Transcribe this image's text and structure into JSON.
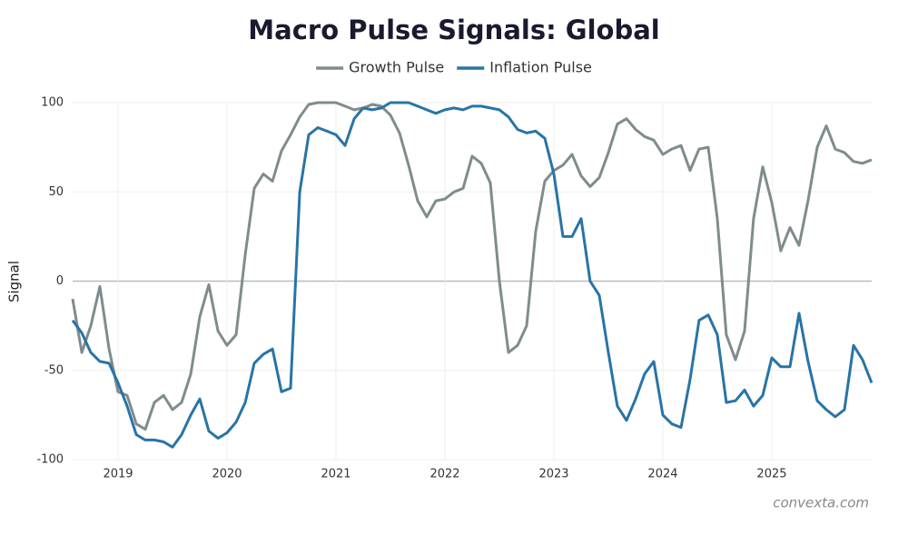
{
  "chart_data": {
    "type": "line",
    "title": "Macro Pulse Signals: Global",
    "ylabel": "Signal",
    "source": "convexta.com",
    "x": [
      2018.583,
      2018.667,
      2018.75,
      2018.833,
      2018.917,
      2019,
      2019.083,
      2019.167,
      2019.25,
      2019.333,
      2019.417,
      2019.5,
      2019.583,
      2019.667,
      2019.75,
      2019.833,
      2019.917,
      2020,
      2020.083,
      2020.167,
      2020.25,
      2020.333,
      2020.417,
      2020.5,
      2020.583,
      2020.667,
      2020.75,
      2020.833,
      2020.917,
      2021,
      2021.083,
      2021.167,
      2021.25,
      2021.333,
      2021.417,
      2021.5,
      2021.583,
      2021.667,
      2021.75,
      2021.833,
      2021.917,
      2022,
      2022.083,
      2022.167,
      2022.25,
      2022.333,
      2022.417,
      2022.5,
      2022.583,
      2022.667,
      2022.75,
      2022.833,
      2022.917,
      2023,
      2023.083,
      2023.167,
      2023.25,
      2023.333,
      2023.417,
      2023.5,
      2023.583,
      2023.667,
      2023.75,
      2023.833,
      2023.917,
      2024,
      2024.083,
      2024.167,
      2024.25,
      2024.333,
      2024.417,
      2024.5,
      2024.583,
      2024.667,
      2024.75,
      2024.833,
      2024.917,
      2025,
      2025.083,
      2025.167,
      2025.25,
      2025.333,
      2025.417,
      2025.5,
      2025.583,
      2025.667,
      2025.75,
      2025.833,
      2025.917
    ],
    "series": [
      {
        "name": "Growth Pulse",
        "color": "#7f8c8d",
        "values": [
          -10,
          -40,
          -25,
          -3,
          -38,
          -62,
          -64,
          -80,
          -83,
          -68,
          -64,
          -72,
          -68,
          -52,
          -20,
          -2,
          -28,
          -36,
          -30,
          15,
          52,
          60,
          56,
          73,
          82,
          92,
          99,
          100,
          100,
          100,
          98,
          96,
          97,
          99,
          98,
          93,
          83,
          65,
          45,
          36,
          45,
          46,
          50,
          52,
          70,
          66,
          55,
          0,
          -40,
          -36,
          -25,
          28,
          56,
          62,
          65,
          71,
          59,
          53,
          58,
          72,
          88,
          91,
          85,
          81,
          79,
          71,
          74,
          76,
          62,
          74,
          75,
          35,
          -30,
          -44,
          -28,
          35,
          64,
          44,
          17,
          30,
          20,
          45,
          75,
          87,
          74,
          72,
          67,
          66,
          68
        ]
      },
      {
        "name": "Inflation Pulse",
        "color": "#2874a6",
        "values": [
          -22,
          -29,
          -40,
          -45,
          -46,
          -57,
          -70,
          -86,
          -89,
          -89,
          -90,
          -93,
          -86,
          -75,
          -66,
          -84,
          -88,
          -85,
          -79,
          -68,
          -46,
          -41,
          -38,
          -62,
          -60,
          50,
          82,
          86,
          84,
          82,
          76,
          91,
          97,
          96,
          97,
          100,
          100,
          100,
          98,
          96,
          94,
          96,
          97,
          96,
          98,
          98,
          97,
          96,
          92,
          85,
          83,
          84,
          80,
          60,
          25,
          25,
          35,
          0,
          -8,
          -40,
          -70,
          -78,
          -66,
          -52,
          -45,
          -75,
          -80,
          -82,
          -55,
          -22,
          -19,
          -30,
          -68,
          -67,
          -61,
          -70,
          -64,
          -43,
          -48,
          -48,
          -18,
          -45,
          -67,
          -72,
          -76,
          -72,
          -36,
          -44,
          -57
        ]
      }
    ],
    "xlim": [
      2018.583,
      2025.917
    ],
    "xticks": [
      2019,
      2020,
      2021,
      2022,
      2023,
      2024,
      2025
    ],
    "ylim": [
      -100,
      100
    ],
    "yticks": [
      -100,
      -50,
      0,
      50,
      100
    ],
    "grid": true
  }
}
